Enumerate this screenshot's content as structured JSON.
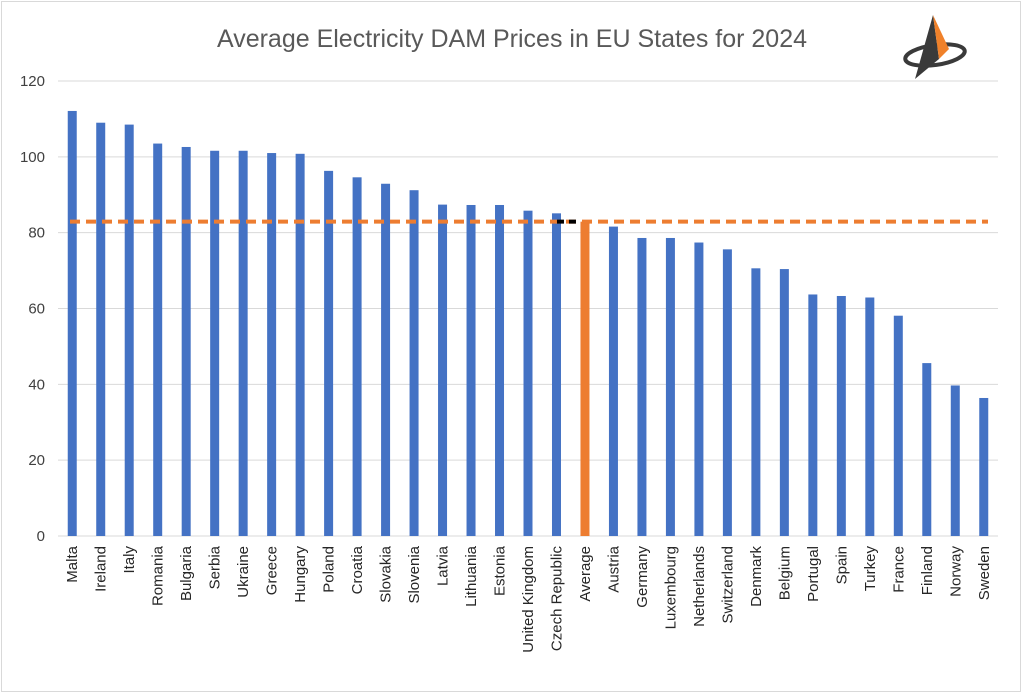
{
  "chart_data": {
    "type": "bar",
    "title": "Average Electricity DAM Prices in EU States for 2024",
    "categories": [
      "Malta",
      "Ireland",
      "Italy",
      "Romania",
      "Bulgaria",
      "Serbia",
      "Ukraine",
      "Greece",
      "Hungary",
      "Poland",
      "Croatia",
      "Slovakia",
      "Slovenia",
      "Latvia",
      "Lithuania",
      "Estonia",
      "United Kingdom",
      "Czech Republic",
      "Average",
      "Austria",
      "Germany",
      "Luxembourg",
      "Netherlands",
      "Switzerland",
      "Denmark",
      "Belgium",
      "Portugal",
      "Spain",
      "Turkey",
      "France",
      "Finland",
      "Norway",
      "Sweden"
    ],
    "values": [
      112.1,
      109.0,
      108.5,
      103.5,
      102.6,
      101.6,
      101.6,
      101.0,
      100.8,
      96.3,
      94.6,
      92.9,
      91.2,
      87.4,
      87.3,
      87.3,
      85.8,
      85.1,
      82.9,
      81.6,
      78.6,
      78.6,
      77.4,
      75.6,
      70.6,
      70.4,
      63.7,
      63.3,
      62.9,
      58.1,
      45.6,
      39.7,
      36.4
    ],
    "highlight_category": "Average",
    "average_line": 82.9,
    "ylim": [
      0,
      120
    ],
    "yticks": [
      0,
      20,
      40,
      60,
      80,
      100,
      120
    ],
    "grid": true,
    "legend": "none",
    "colors": {
      "bar": "#4472c4",
      "highlight": "#ed7d31",
      "average_line": "#ed7d31",
      "marker_segment": "#000000",
      "gridline": "#d9d9d9",
      "title": "#595959",
      "tick": "#404040",
      "logo_dark": "#3a3a3a",
      "logo_orange": "#f0812a"
    }
  },
  "logo": {
    "icon": "compass-arrow-logo-icon"
  }
}
